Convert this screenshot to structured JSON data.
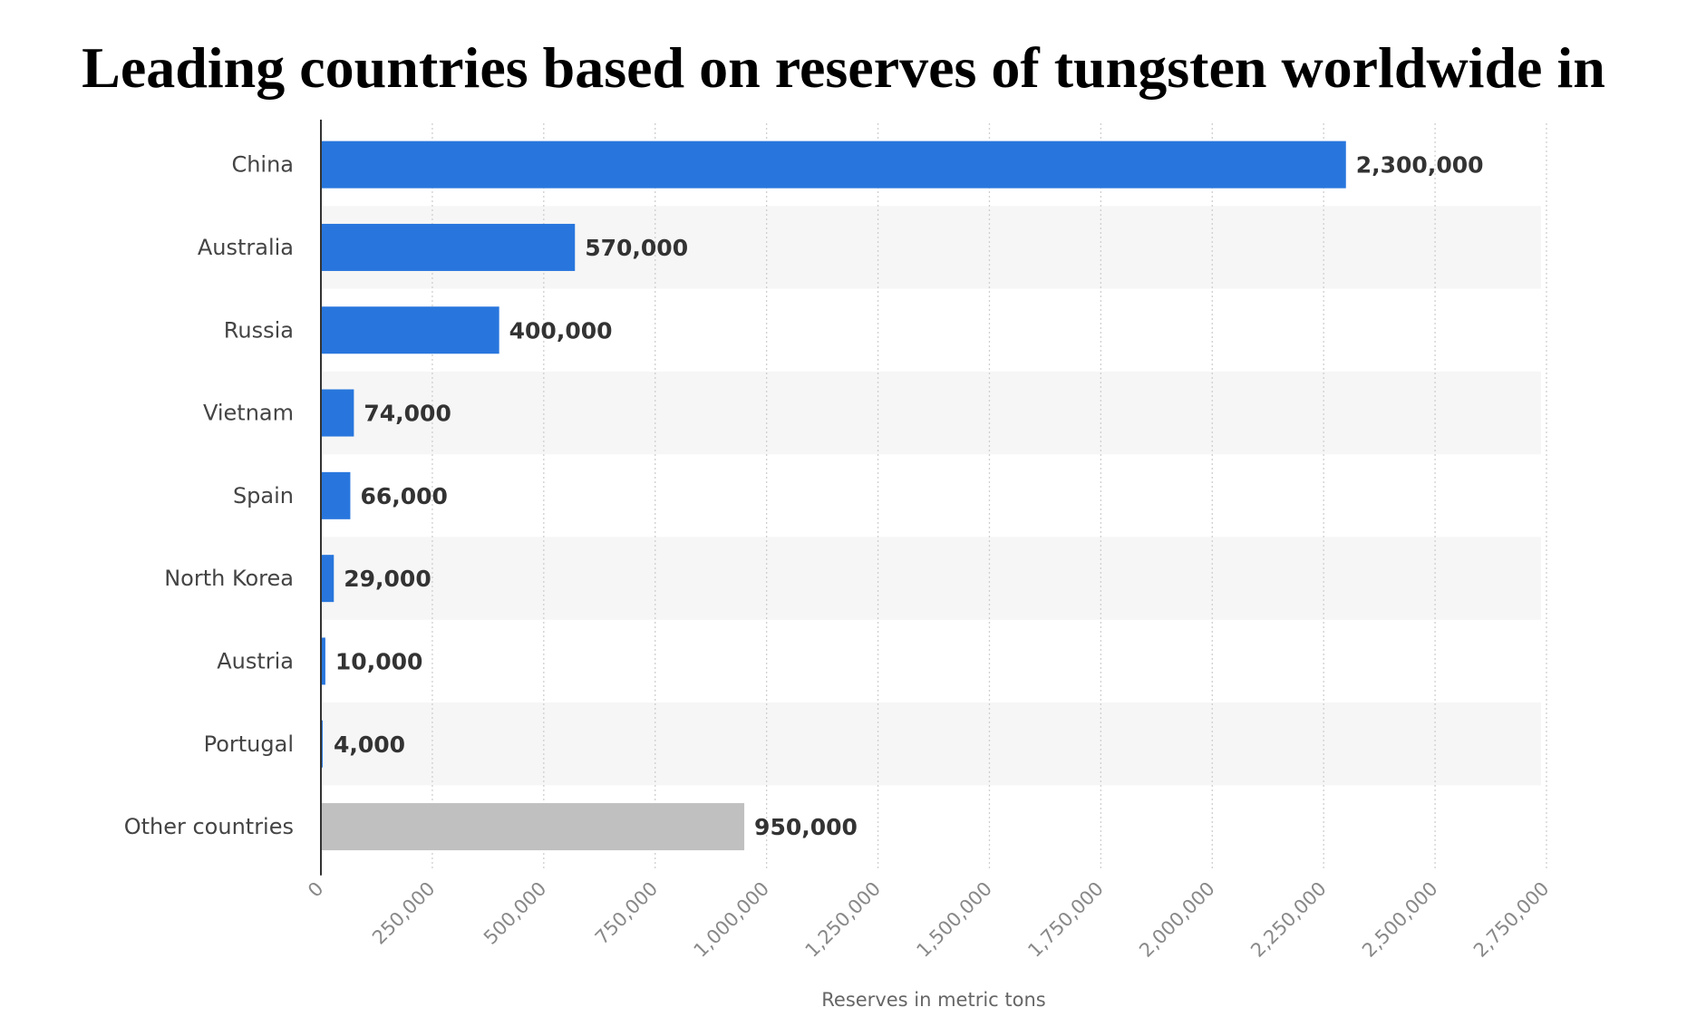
{
  "chart_data": {
    "type": "bar",
    "orientation": "horizontal",
    "title": "Leading countries based on reserves of tungsten worldwide in",
    "xlabel": "Reserves in metric tons",
    "ylabel": "",
    "categories": [
      "China",
      "Australia",
      "Russia",
      "Vietnam",
      "Spain",
      "North Korea",
      "Austria",
      "Portugal",
      "Other countries"
    ],
    "values": [
      2300000,
      570000,
      400000,
      74000,
      66000,
      29000,
      10000,
      4000,
      950000
    ],
    "value_labels": [
      "2,300,000",
      "570,000",
      "400,000",
      "74,000",
      "66,000",
      "29,000",
      "10,000",
      "4,000",
      "950,000"
    ],
    "bar_colors": [
      "#2876dd",
      "#2876dd",
      "#2876dd",
      "#2876dd",
      "#2876dd",
      "#2876dd",
      "#2876dd",
      "#2876dd",
      "#c0c0c0"
    ],
    "xlim": [
      0,
      2750000
    ],
    "xticks": [
      0,
      250000,
      500000,
      750000,
      1000000,
      1250000,
      1500000,
      1750000,
      2000000,
      2250000,
      2500000,
      2750000
    ],
    "xtick_labels": [
      "0",
      "250,000",
      "500,000",
      "750,000",
      "1,000,000",
      "1,250,000",
      "1,500,000",
      "1,750,000",
      "2,000,000",
      "2,250,000",
      "2,500,000",
      "2,750,000"
    ],
    "grid": "vertical dotted",
    "row_banding": true,
    "legend": "none"
  }
}
